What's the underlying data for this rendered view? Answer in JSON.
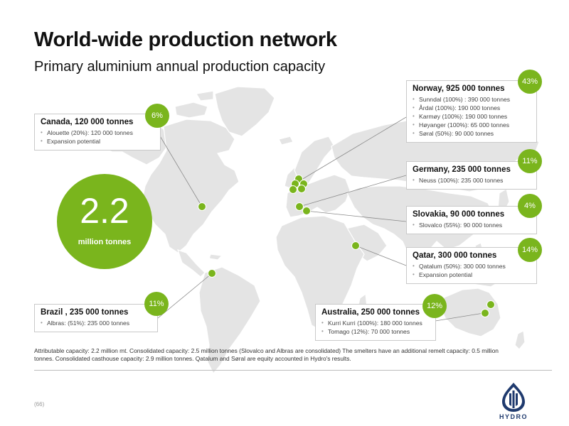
{
  "header": {
    "title": "World-wide production network",
    "subtitle": "Primary aluminium annual production capacity"
  },
  "total": {
    "value": "2.2",
    "unit": "million tonnes"
  },
  "colors": {
    "accent": "#7ab51d",
    "land": "#e4e4e4",
    "logo": "#1f3a6e"
  },
  "regions": {
    "norway": {
      "heading": "Norway, 925 000 tonnes",
      "share": "43%",
      "items": [
        "Sunndal (100%) : 390 000 tonnes",
        "Årdal (100%): 190 000 tonnes",
        "Karmøy (100%): 190 000 tonnes",
        "Høyanger (100%): 65 000 tonnes",
        "Søral (50%): 90 000 tonnes"
      ]
    },
    "canada": {
      "heading": "Canada, 120 000 tonnes",
      "share": "6%",
      "items": [
        "Alouette (20%): 120 000 tonnes",
        "Expansion potential"
      ]
    },
    "germany": {
      "heading": "Germany, 235 000 tonnes",
      "share": "11%",
      "items": [
        "Neuss (100%): 235 000 tonnes"
      ]
    },
    "slovakia": {
      "heading": "Slovakia, 90 000 tonnes",
      "share": "4%",
      "items": [
        "Slovalco (55%): 90 000 tonnes"
      ]
    },
    "qatar": {
      "heading": "Qatar, 300 000 tonnes",
      "share": "14%",
      "items": [
        "Qatalum (50%): 300 000 tonnes",
        "Expansion potential"
      ]
    },
    "brazil": {
      "heading": "Brazil , 235 000 tonnes",
      "share": "11%",
      "items": [
        "Albras: (51%): 235 000 tonnes"
      ]
    },
    "australia": {
      "heading": "Australia, 250 000 tonnes",
      "share": "12%",
      "items": [
        "Kurri Kurri (100%): 180 000 tonnes",
        "Tomago (12%): 70 000 tonnes"
      ]
    }
  },
  "footnote": "Attributable capacity: 2.2 million mt. Consolidated capacity: 2.5 million tonnes (Slovalco and Albras are consolidated) The smelters have an additional remelt capacity: 0.5 million tonnes. Consolidated casthouse capacity: 2.9 million tonnes. Qatalum and Søral are equity accounted in Hydro's results.",
  "page_number": "(66)",
  "logo": {
    "icon": "hydro-logo-icon",
    "word": "HYDRO"
  }
}
